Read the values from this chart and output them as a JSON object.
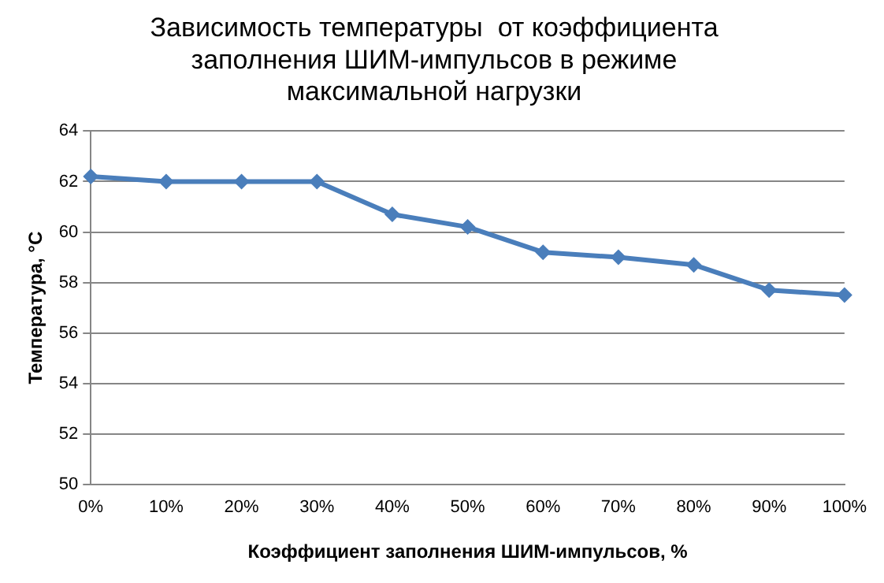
{
  "chart_data": {
    "type": "line",
    "title": [
      "Зависимость температуры  от коэффициента",
      "заполнения ШИМ-импульсов в режиме",
      "максимальной нагрузки"
    ],
    "xlabel": "Коэффициент заполнения ШИМ-импульсов, %",
    "ylabel": "Температура, °С",
    "categories": [
      "0%",
      "10%",
      "20%",
      "30%",
      "40%",
      "50%",
      "60%",
      "70%",
      "80%",
      "90%",
      "100%"
    ],
    "series": [
      {
        "color": "#4a7ebb",
        "values": [
          62.2,
          62.0,
          62.0,
          62.0,
          60.7,
          60.2,
          59.2,
          59.0,
          58.7,
          57.7,
          57.5
        ]
      }
    ],
    "ylim": [
      50,
      64
    ],
    "yticks": [
      50,
      52,
      54,
      56,
      58,
      60,
      62,
      64
    ],
    "grid": "y",
    "legend": false,
    "marker": "diamond",
    "line_style": "solid"
  }
}
